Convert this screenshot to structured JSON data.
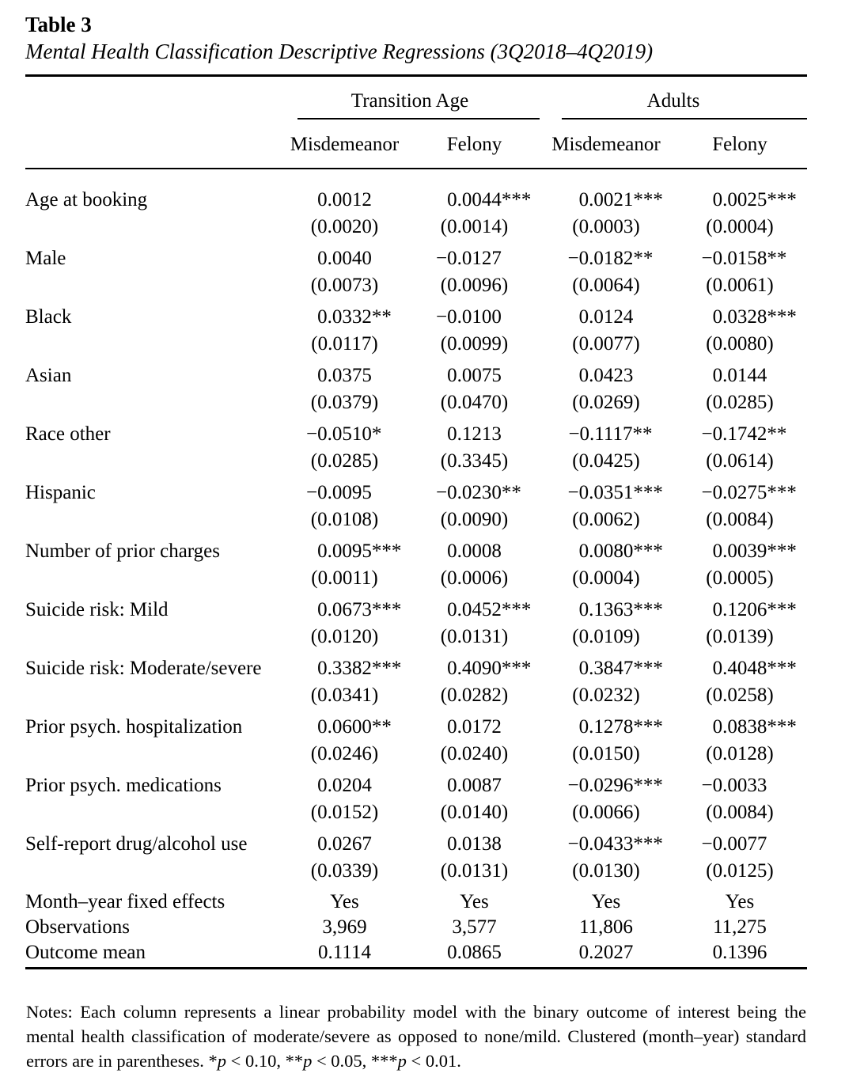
{
  "table": {
    "title": "Table 3",
    "subtitle": "Mental Health Classification Descriptive Regressions (3Q2018–4Q2019)",
    "header": {
      "groups": [
        {
          "label": "Transition Age",
          "columns": [
            "Misdemeanor",
            "Felony"
          ]
        },
        {
          "label": "Adults",
          "columns": [
            "Misdemeanor",
            "Felony"
          ]
        }
      ]
    },
    "rows": [
      {
        "label": "Age at booking",
        "coefs": [
          "0.0012",
          "0.0044***",
          "0.0021***",
          "0.0025***"
        ],
        "ses": [
          "(0.0020)",
          "(0.0014)",
          "(0.0003)",
          "(0.0004)"
        ]
      },
      {
        "label": "Male",
        "coefs": [
          "0.0040",
          "−0.0127",
          "−0.0182**",
          "−0.0158**"
        ],
        "ses": [
          "(0.0073)",
          "(0.0096)",
          "(0.0064)",
          "(0.0061)"
        ]
      },
      {
        "label": "Black",
        "coefs": [
          "0.0332**",
          "−0.0100",
          "0.0124",
          "0.0328***"
        ],
        "ses": [
          "(0.0117)",
          "(0.0099)",
          "(0.0077)",
          "(0.0080)"
        ]
      },
      {
        "label": "Asian",
        "coefs": [
          "0.0375",
          "0.0075",
          "0.0423",
          "0.0144"
        ],
        "ses": [
          "(0.0379)",
          "(0.0470)",
          "(0.0269)",
          "(0.0285)"
        ]
      },
      {
        "label": "Race other",
        "coefs": [
          "−0.0510*",
          "0.1213",
          "−0.1117**",
          "−0.1742**"
        ],
        "ses": [
          "(0.0285)",
          "(0.3345)",
          "(0.0425)",
          "(0.0614)"
        ]
      },
      {
        "label": "Hispanic",
        "coefs": [
          "−0.0095",
          "−0.0230**",
          "−0.0351***",
          "−0.0275***"
        ],
        "ses": [
          "(0.0108)",
          "(0.0090)",
          "(0.0062)",
          "(0.0084)"
        ]
      },
      {
        "label": "Number of prior charges",
        "coefs": [
          "0.0095***",
          "0.0008",
          "0.0080***",
          "0.0039***"
        ],
        "ses": [
          "(0.0011)",
          "(0.0006)",
          "(0.0004)",
          "(0.0005)"
        ]
      },
      {
        "label": "Suicide risk: Mild",
        "coefs": [
          "0.0673***",
          "0.0452***",
          "0.1363***",
          "0.1206***"
        ],
        "ses": [
          "(0.0120)",
          "(0.0131)",
          "(0.0109)",
          "(0.0139)"
        ]
      },
      {
        "label": "Suicide risk: Moderate/severe",
        "coefs": [
          "0.3382***",
          "0.4090***",
          "0.3847***",
          "0.4048***"
        ],
        "ses": [
          "(0.0341)",
          "(0.0282)",
          "(0.0232)",
          "(0.0258)"
        ]
      },
      {
        "label": "Prior psych. hospitalization",
        "coefs": [
          "0.0600**",
          "0.0172",
          "0.1278***",
          "0.0838***"
        ],
        "ses": [
          "(0.0246)",
          "(0.0240)",
          "(0.0150)",
          "(0.0128)"
        ]
      },
      {
        "label": "Prior psych. medications",
        "coefs": [
          "0.0204",
          "0.0087",
          "−0.0296***",
          "−0.0033"
        ],
        "ses": [
          "(0.0152)",
          "(0.0140)",
          "(0.0066)",
          "(0.0084)"
        ]
      },
      {
        "label": "Self-report drug/alcohol use",
        "coefs": [
          "0.0267",
          "0.0138",
          "−0.0433***",
          "−0.0077"
        ],
        "ses": [
          "(0.0339)",
          "(0.0131)",
          "(0.0130)",
          "(0.0125)"
        ]
      }
    ],
    "summary_rows": [
      {
        "label": "Month–year fixed effects",
        "values": [
          "Yes",
          "Yes",
          "Yes",
          "Yes"
        ]
      },
      {
        "label": "Observations",
        "values": [
          "3,969",
          "3,577",
          "11,806",
          "11,275"
        ]
      },
      {
        "label": "Outcome mean",
        "values": [
          "0.1114",
          "0.0865",
          "0.2027",
          "0.1396"
        ]
      }
    ]
  },
  "notes": {
    "body": "Notes: Each column represents a linear probability model with the binary outcome of interest being the mental health classification of moderate/severe as opposed to none/mild. Clustered (month–year) standard errors are in parentheses.",
    "significance": [
      {
        "stars": "*",
        "variable": "p",
        "condition": " < 0.10, "
      },
      {
        "stars": "**",
        "variable": "p",
        "condition": " < 0.05, "
      },
      {
        "stars": "***",
        "variable": "p",
        "condition": " < 0.01."
      }
    ]
  },
  "colors": {
    "text": "#000000",
    "background": "#ffffff"
  }
}
